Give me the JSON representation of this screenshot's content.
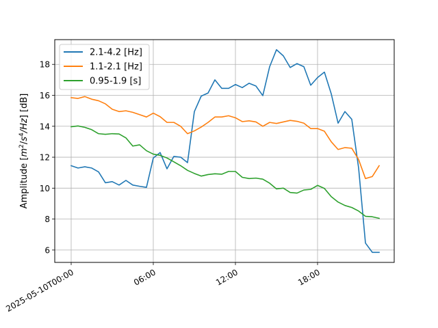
{
  "chart_data": {
    "type": "line",
    "xlabel": "",
    "ylabel": "Amplitude [m²/s⁴/Hz] [dB]",
    "ylabel_parts": {
      "prefix": "Amplitude [",
      "m": "m",
      "sup2": "2",
      "slash1": "/",
      "s": "s",
      "sup4": "4",
      "hz": "/Hz",
      "suffix": "] [dB]"
    },
    "x_unit": "hours since 2025-05-10T00:00",
    "xlim": [
      -1.2,
      23.6
    ],
    "ylim": [
      5.2,
      19.6
    ],
    "x_ticks": [
      {
        "value": 0,
        "label": "2025-05-10T00:00"
      },
      {
        "value": 6,
        "label": "06:00"
      },
      {
        "value": 12,
        "label": "12:00"
      },
      {
        "value": 18,
        "label": "18:00"
      }
    ],
    "y_ticks": [
      6,
      8,
      10,
      12,
      14,
      16,
      18
    ],
    "grid": true,
    "legend_position": "top-left",
    "x": [
      0,
      0.5,
      1,
      1.5,
      2,
      2.5,
      3,
      3.5,
      4,
      4.5,
      5,
      5.5,
      6,
      6.5,
      7,
      7.5,
      8,
      8.5,
      9,
      9.5,
      10,
      10.5,
      11,
      11.5,
      12,
      12.5,
      13,
      13.5,
      14,
      14.5,
      15,
      15.5,
      16,
      16.5,
      17,
      17.5,
      18,
      18.5,
      19,
      19.5,
      20,
      20.5,
      21,
      21.5,
      22,
      22.5
    ],
    "series": [
      {
        "name": "2.1-4.2 [Hz]",
        "color": "#1f77b4",
        "values": [
          11.45,
          11.3,
          11.38,
          11.3,
          11.05,
          10.35,
          10.42,
          10.2,
          10.5,
          10.2,
          10.12,
          10.05,
          11.95,
          12.3,
          11.25,
          12.05,
          12.0,
          11.65,
          14.95,
          15.95,
          16.15,
          17.0,
          16.45,
          16.45,
          16.7,
          16.5,
          16.78,
          16.6,
          15.98,
          17.85,
          18.95,
          18.55,
          17.8,
          18.05,
          17.85,
          16.65,
          17.15,
          17.5,
          16.1,
          14.2,
          14.95,
          14.45,
          11.3,
          6.45,
          5.85,
          5.85
        ]
      },
      {
        "name": "1.1-2.1 [Hz]",
        "color": "#ff7f0e",
        "values": [
          15.85,
          15.8,
          15.92,
          15.75,
          15.65,
          15.45,
          15.1,
          14.95,
          15.0,
          14.9,
          14.75,
          14.6,
          14.85,
          14.62,
          14.25,
          14.25,
          14.0,
          13.52,
          13.7,
          13.95,
          14.25,
          14.6,
          14.6,
          14.68,
          14.55,
          14.3,
          14.35,
          14.28,
          14.0,
          14.25,
          14.18,
          14.28,
          14.38,
          14.32,
          14.2,
          13.85,
          13.85,
          13.68,
          13.0,
          12.5,
          12.62,
          12.58,
          11.85,
          10.62,
          10.75,
          11.45
        ]
      },
      {
        "name": "0.95-1.9 [s]",
        "color": "#2ca02c",
        "values": [
          13.97,
          14.02,
          13.93,
          13.78,
          13.52,
          13.48,
          13.52,
          13.5,
          13.25,
          12.72,
          12.8,
          12.42,
          12.2,
          12.12,
          11.95,
          11.7,
          11.45,
          11.15,
          10.95,
          10.78,
          10.88,
          10.93,
          10.9,
          11.08,
          11.08,
          10.7,
          10.62,
          10.65,
          10.58,
          10.32,
          9.95,
          10.0,
          9.72,
          9.68,
          9.88,
          9.92,
          10.18,
          9.98,
          9.45,
          9.1,
          8.88,
          8.75,
          8.52,
          8.18,
          8.15,
          8.05
        ]
      }
    ]
  }
}
